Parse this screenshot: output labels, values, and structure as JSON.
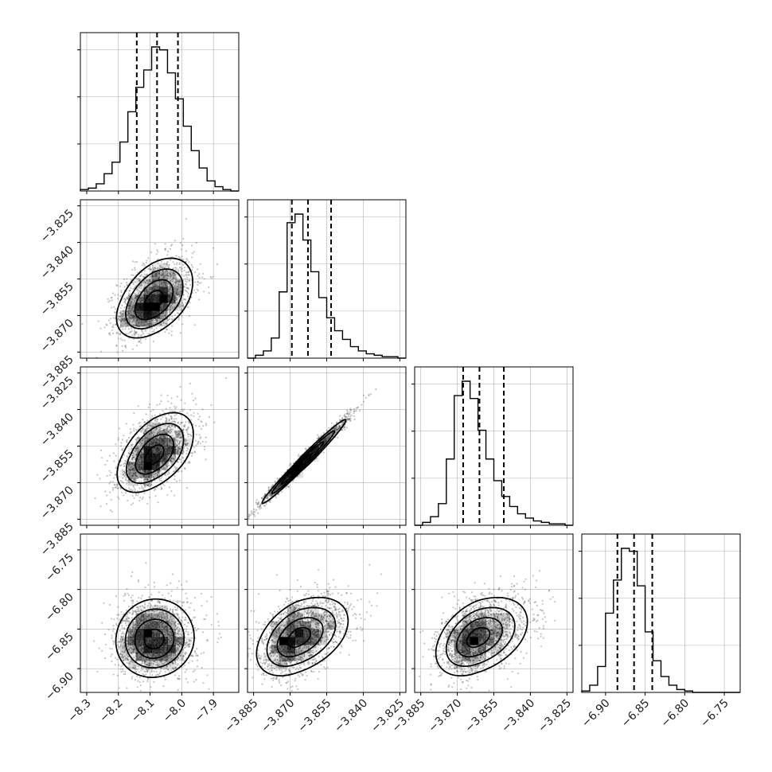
{
  "chart_data": {
    "type": "corner",
    "n_params": 4,
    "grid": true,
    "quantiles": [
      0.16,
      0.5,
      0.84
    ],
    "params": [
      {
        "range": [
          -8.32,
          -7.82
        ],
        "ticks": [
          -8.3,
          -8.2,
          -8.1,
          -8.0,
          -7.9
        ],
        "tick_labels": [
          "−8.3",
          "−8.2",
          "−8.1",
          "−8.0",
          "−7.9"
        ],
        "quantile_values": [
          -8.142,
          -8.078,
          -8.012
        ]
      },
      {
        "range": [
          -3.8875,
          -3.8225
        ],
        "ticks": [
          -3.885,
          -3.87,
          -3.855,
          -3.84,
          -3.825
        ],
        "tick_labels": [
          "−3.885",
          "−3.870",
          "−3.855",
          "−3.840",
          "−3.825"
        ],
        "quantile_values": [
          -3.8693,
          -3.8627,
          -3.8532
        ]
      },
      {
        "range": [
          -3.8875,
          -3.8225
        ],
        "ticks": [
          -3.885,
          -3.87,
          -3.855,
          -3.84,
          -3.825
        ],
        "tick_labels": [
          "−3.885",
          "−3.870",
          "−3.855",
          "−3.840",
          "−3.825"
        ],
        "quantile_values": [
          -3.8676,
          -3.8609,
          -3.8509
        ]
      },
      {
        "range": [
          -6.93,
          -6.73
        ],
        "ticks": [
          -6.9,
          -6.85,
          -6.8,
          -6.75
        ],
        "tick_labels": [
          "−6.90",
          "−6.85",
          "−6.80",
          "−6.75"
        ],
        "quantile_values": [
          -6.885,
          -6.864,
          -6.841
        ]
      }
    ],
    "histograms": [
      {
        "counts": [
          0.01,
          0.02,
          0.05,
          0.12,
          0.2,
          0.34,
          0.55,
          0.72,
          0.84,
          1.0,
          0.98,
          0.82,
          0.64,
          0.45,
          0.28,
          0.16,
          0.07,
          0.03,
          0.01,
          0.0
        ]
      },
      {
        "counts": [
          0.0,
          0.02,
          0.05,
          0.14,
          0.46,
          0.94,
          1.0,
          0.82,
          0.6,
          0.42,
          0.28,
          0.19,
          0.13,
          0.08,
          0.05,
          0.03,
          0.02,
          0.01,
          0.01,
          0.0
        ]
      },
      {
        "counts": [
          0.0,
          0.02,
          0.06,
          0.15,
          0.46,
          0.9,
          1.0,
          0.88,
          0.66,
          0.46,
          0.31,
          0.2,
          0.13,
          0.08,
          0.05,
          0.03,
          0.02,
          0.01,
          0.01,
          0.0
        ]
      },
      {
        "counts": [
          0.01,
          0.05,
          0.18,
          0.55,
          0.78,
          1.0,
          0.98,
          0.74,
          0.42,
          0.22,
          0.11,
          0.05,
          0.02,
          0.01,
          0.0,
          0.0,
          0.0,
          0.0,
          0.0,
          0.0
        ]
      }
    ],
    "joint_pairs": [
      {
        "x_param": 0,
        "y_param": 1,
        "x_center": -8.09,
        "y_center": -3.8642,
        "x_sd": 0.058,
        "y_sd": 0.0075,
        "corr": 0.45,
        "x_skew": 0.25,
        "y_skew": 0.6,
        "points": 1800
      },
      {
        "x_param": 0,
        "y_param": 2,
        "x_center": -8.088,
        "y_center": -3.859,
        "x_sd": 0.058,
        "y_sd": 0.0075,
        "corr": 0.5,
        "x_skew": 0.25,
        "y_skew": 0.6,
        "points": 1800
      },
      {
        "x_param": 1,
        "y_param": 2,
        "x_center": -3.8655,
        "y_center": -3.8625,
        "x_sd": 0.008,
        "y_sd": 0.008,
        "corr": 0.985,
        "x_skew": 0.5,
        "y_skew": 0.5,
        "points": 2200
      },
      {
        "x_param": 0,
        "y_param": 3,
        "x_center": -8.088,
        "y_center": -6.863,
        "x_sd": 0.06,
        "y_sd": 0.024,
        "corr": 0.05,
        "x_skew": 0.2,
        "y_skew": 0.2,
        "points": 1800
      },
      {
        "x_param": 1,
        "y_param": 3,
        "x_center": -3.8668,
        "y_center": -6.861,
        "x_sd": 0.0085,
        "y_sd": 0.024,
        "corr": 0.42,
        "x_skew": 0.7,
        "y_skew": 0.2,
        "points": 1800
      },
      {
        "x_param": 2,
        "y_param": 3,
        "x_center": -3.8618,
        "y_center": -6.861,
        "x_sd": 0.0085,
        "y_sd": 0.024,
        "corr": 0.4,
        "x_skew": 0.7,
        "y_skew": 0.2,
        "points": 1800
      }
    ],
    "contour_levels": [
      0.118,
      0.393,
      0.675,
      0.865
    ],
    "colors": {
      "axes": "#000000",
      "grid": "#b0b0b0",
      "points": "#4a4a4a",
      "density": "#000000"
    }
  }
}
